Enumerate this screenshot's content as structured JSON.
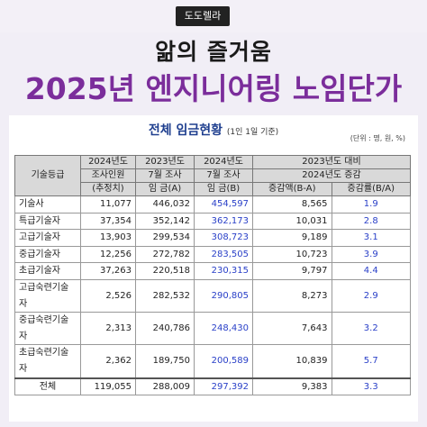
{
  "brand": "도도렐라",
  "headline": {
    "line1": "앎의 즐거움",
    "line2": "2025년 엔지니어링 노임단가"
  },
  "table": {
    "title": "전체 임금현황",
    "title_note": "(1인 1일 기준)",
    "unit": "(단위 : 명, 원, %)",
    "headers": {
      "grade": "기술등급",
      "survey_line1": "2024년도",
      "survey_line2": "조사인원",
      "survey_line3": "(추정치)",
      "col2023_line1": "2023년도",
      "col2023_line2": "7월 조사",
      "col2023_line3": "임 금(A)",
      "col2024_line1": "2024년도",
      "col2024_line2": "7월 조사",
      "col2024_line3": "임 금(B)",
      "compare_line1": "2023년도 대비",
      "compare_line2": "2024년도 증감",
      "diff": "증감액(B-A)",
      "rate": "증감률(B/A)"
    },
    "rows": [
      {
        "grade": "기술사",
        "count": "11,077",
        "a": "446,032",
        "b": "454,597",
        "diff": "8,565",
        "rate": "1.9"
      },
      {
        "grade": "특급기술자",
        "count": "37,354",
        "a": "352,142",
        "b": "362,173",
        "diff": "10,031",
        "rate": "2.8"
      },
      {
        "grade": "고급기술자",
        "count": "13,903",
        "a": "299,534",
        "b": "308,723",
        "diff": "9,189",
        "rate": "3.1"
      },
      {
        "grade": "중급기술자",
        "count": "12,256",
        "a": "272,782",
        "b": "283,505",
        "diff": "10,723",
        "rate": "3.9"
      },
      {
        "grade": "초급기술자",
        "count": "37,263",
        "a": "220,518",
        "b": "230,315",
        "diff": "9,797",
        "rate": "4.4"
      },
      {
        "grade": "고급숙련기술자",
        "count": "2,526",
        "a": "282,532",
        "b": "290,805",
        "diff": "8,273",
        "rate": "2.9"
      },
      {
        "grade": "중급숙련기술자",
        "count": "2,313",
        "a": "240,786",
        "b": "248,430",
        "diff": "7,643",
        "rate": "3.2"
      },
      {
        "grade": "초급숙련기술자",
        "count": "2,362",
        "a": "189,750",
        "b": "200,589",
        "diff": "10,839",
        "rate": "5.7"
      }
    ],
    "total": {
      "grade": "전체",
      "count": "119,055",
      "a": "288,009",
      "b": "297,392",
      "diff": "9,383",
      "rate": "3.3"
    }
  },
  "colors": {
    "headline2": "#7b2d9b",
    "title": "#1f3f8f",
    "highlight_value": "#2a40c8"
  }
}
